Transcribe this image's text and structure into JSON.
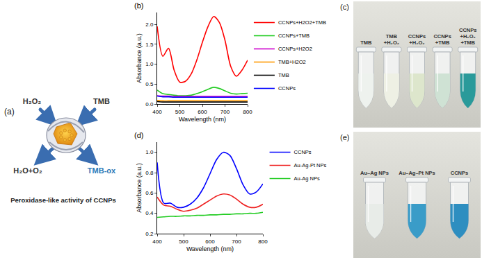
{
  "chart_data": [
    {
      "type": "line",
      "title": "(b)",
      "x_label": "Wavelength (nm)",
      "y_label": "Absorbance (a.u.)",
      "xlim": [
        400,
        800
      ],
      "xticks": [
        400,
        500,
        600,
        700,
        800
      ],
      "ylim": [
        0,
        2.3
      ],
      "yticks": [
        {
          "value": 0,
          "label": "0.0"
        },
        {
          "value": 0.5,
          "label": "0.5"
        },
        {
          "value": 1,
          "label": "1.0"
        },
        {
          "value": 1.5,
          "label": "1.5"
        },
        {
          "value": 2,
          "label": "2.0"
        }
      ],
      "grid": false,
      "legend": "right",
      "x": [
        400,
        425,
        450,
        475,
        500,
        525,
        550,
        575,
        600,
        625,
        650,
        675,
        700,
        725,
        750,
        775,
        800
      ],
      "series": [
        {
          "name": "CCNPs+H2O2+TMB",
          "color": "#ff0000",
          "values": [
            1.95,
            1.2,
            1.4,
            0.85,
            0.55,
            0.57,
            0.75,
            1.1,
            1.55,
            1.95,
            2.2,
            2.05,
            1.6,
            0.95,
            0.7,
            0.85,
            1.1
          ]
        },
        {
          "name": "CCNPs+TMB",
          "color": "#22cc22",
          "values": [
            0.35,
            0.26,
            0.24,
            0.22,
            0.21,
            0.21,
            0.22,
            0.26,
            0.31,
            0.37,
            0.42,
            0.39,
            0.33,
            0.27,
            0.25,
            0.26,
            0.27
          ]
        },
        {
          "name": "CCNPs+H2O2",
          "color": "#cc00cc",
          "values": [
            0.21,
            0.2,
            0.2,
            0.19,
            0.19,
            0.19,
            0.19,
            0.19,
            0.19,
            0.19,
            0.19,
            0.19,
            0.19,
            0.19,
            0.19,
            0.19,
            0.19
          ]
        },
        {
          "name": "TMB+H2O2",
          "color": "#ff9900",
          "values": [
            0.09,
            0.08,
            0.08,
            0.08,
            0.08,
            0.08,
            0.08,
            0.08,
            0.08,
            0.08,
            0.08,
            0.08,
            0.08,
            0.08,
            0.08,
            0.08,
            0.08
          ]
        },
        {
          "name": "TMB",
          "color": "#000000",
          "values": [
            0.06,
            0.05,
            0.05,
            0.05,
            0.05,
            0.05,
            0.05,
            0.05,
            0.05,
            0.05,
            0.05,
            0.05,
            0.05,
            0.05,
            0.05,
            0.05,
            0.05
          ]
        },
        {
          "name": "CCNPs",
          "color": "#0000ff",
          "values": [
            0.2,
            0.18,
            0.18,
            0.17,
            0.17,
            0.17,
            0.17,
            0.17,
            0.17,
            0.17,
            0.17,
            0.17,
            0.17,
            0.17,
            0.17,
            0.17,
            0.17
          ]
        }
      ]
    },
    {
      "type": "line",
      "title": "(d)",
      "x_label": "Wavelength (nm)",
      "y_label": "Absorbance (a.u.)",
      "xlim": [
        400,
        800
      ],
      "xticks": [
        400,
        500,
        600,
        700,
        800
      ],
      "ylim": [
        0.2,
        1.1
      ],
      "yticks": [
        0.2,
        0.4,
        0.6,
        0.8,
        {
          "value": 1,
          "label": "1.0"
        }
      ],
      "grid": false,
      "legend": "right",
      "x": [
        400,
        425,
        450,
        475,
        500,
        525,
        550,
        575,
        600,
        625,
        650,
        675,
        700,
        725,
        750,
        775,
        800
      ],
      "series": [
        {
          "name": "CCNPs",
          "color": "#0000ff",
          "values": [
            0.9,
            0.5,
            0.5,
            0.46,
            0.46,
            0.49,
            0.55,
            0.65,
            0.79,
            0.93,
            1.0,
            0.97,
            0.84,
            0.68,
            0.59,
            0.61,
            0.69
          ]
        },
        {
          "name": "Au-Ag-Pt NPs",
          "color": "#ee2222",
          "values": [
            0.56,
            0.48,
            0.47,
            0.44,
            0.42,
            0.43,
            0.45,
            0.49,
            0.53,
            0.57,
            0.59,
            0.58,
            0.54,
            0.49,
            0.46,
            0.46,
            0.49
          ]
        },
        {
          "name": "Au-Ag NPs",
          "color": "#22cc22",
          "values": [
            0.36,
            0.365,
            0.37,
            0.37,
            0.375,
            0.375,
            0.38,
            0.38,
            0.385,
            0.385,
            0.39,
            0.39,
            0.395,
            0.395,
            0.4,
            0.4,
            0.41
          ]
        }
      ]
    }
  ],
  "diagram": {
    "label": "(a)",
    "inputs": [
      "H₂O₂",
      "TMB"
    ],
    "outputs": [
      "H₂O+O₂",
      "TMB-ox"
    ],
    "caption": "Peroxidase-like activity of CCNPs"
  },
  "photos": [
    {
      "label": "(c)",
      "tubes": [
        {
          "text": [
            "TMB"
          ],
          "color": "#eef2ee"
        },
        {
          "text": [
            "TMB",
            "+H₂O₂"
          ],
          "color": "#eef0e4"
        },
        {
          "text": [
            "CCNPs",
            "+H₂O₂"
          ],
          "color": "#dde6cc"
        },
        {
          "text": [
            "CCNPs",
            "+TMB"
          ],
          "color": "#cfe2d4"
        },
        {
          "text": [
            "CCNPs",
            "+H₂O₂",
            "+TMB"
          ],
          "color": "#2a9a9a"
        }
      ]
    },
    {
      "label": "(e)",
      "tubes": [
        {
          "text": [
            "Au–Ag NPs"
          ],
          "color": "#e8ece8"
        },
        {
          "text": [
            "Au–Ag–Pt NPs"
          ],
          "color": "#3a9cc8"
        },
        {
          "text": [
            "CCNPs"
          ],
          "color": "#2e8ec0"
        }
      ]
    }
  ]
}
